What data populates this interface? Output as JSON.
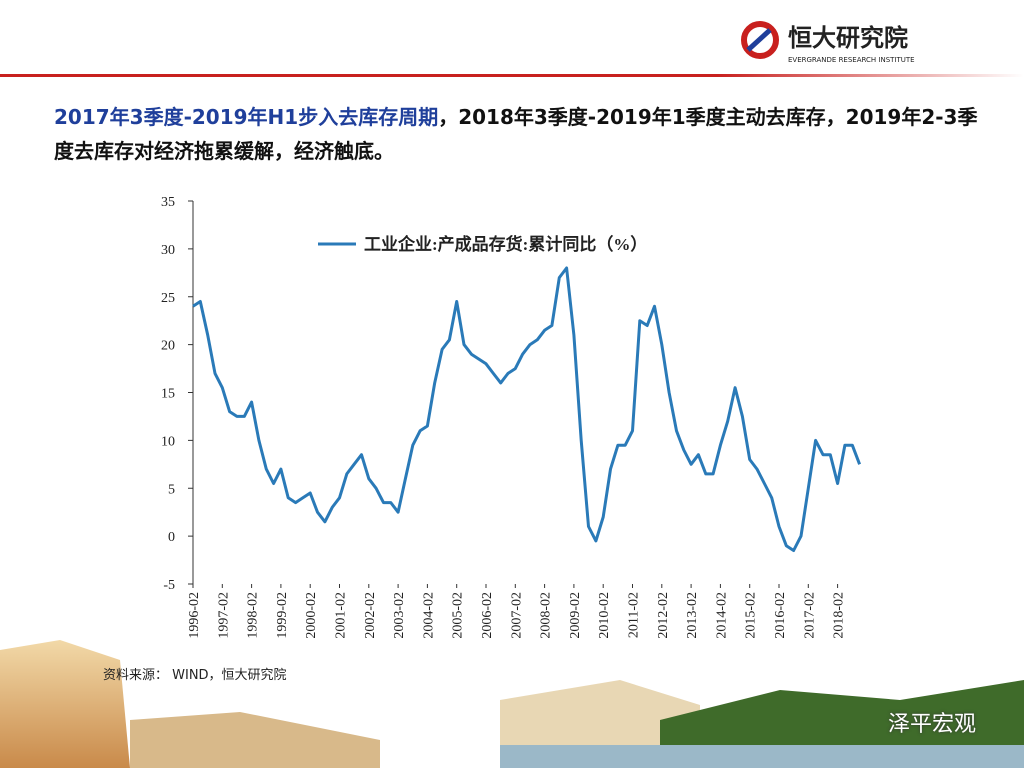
{
  "header": {
    "logo_cn": "恒大研究院",
    "logo_en": "EVERGRANDE RESEARCH INSTITUTE"
  },
  "slide": {
    "title_highlight": "2017年3季度-2019年H1步入去库存周期",
    "title_rest": "，2018年3季度-2019年1季度主动去库存，2019年2-3季度去库存对经济拖累缓解，经济触底。",
    "source": "资料来源： WIND，恒大研究院",
    "watermark": "泽平宏观"
  },
  "chart_data": {
    "type": "line",
    "categories": [
      "1996-02",
      "1996-05",
      "1996-08",
      "1996-11",
      "1997-02",
      "1997-05",
      "1997-08",
      "1997-11",
      "1998-02",
      "1998-05",
      "1998-08",
      "1998-11",
      "1999-02",
      "1999-05",
      "1999-08",
      "1999-11",
      "2000-02",
      "2000-05",
      "2000-08",
      "2000-11",
      "2001-02",
      "2001-05",
      "2001-08",
      "2001-11",
      "2002-02",
      "2002-05",
      "2002-08",
      "2002-11",
      "2003-02",
      "2003-05",
      "2003-08",
      "2003-11",
      "2004-02",
      "2004-05",
      "2004-08",
      "2004-11",
      "2005-02",
      "2005-05",
      "2005-08",
      "2005-11",
      "2006-02",
      "2006-05",
      "2006-08",
      "2006-11",
      "2007-02",
      "2007-05",
      "2007-08",
      "2007-11",
      "2008-02",
      "2008-05",
      "2008-08",
      "2008-11",
      "2009-02",
      "2009-05",
      "2009-08",
      "2009-11",
      "2010-02",
      "2010-05",
      "2010-08",
      "2010-11",
      "2011-02",
      "2011-05",
      "2011-08",
      "2011-11",
      "2012-02",
      "2012-05",
      "2012-08",
      "2012-11",
      "2013-02",
      "2013-05",
      "2013-08",
      "2013-11",
      "2014-02",
      "2014-05",
      "2014-08",
      "2014-11",
      "2015-02",
      "2015-05",
      "2015-08",
      "2015-11",
      "2016-02",
      "2016-05",
      "2016-08",
      "2016-11",
      "2017-02",
      "2017-05",
      "2017-08",
      "2017-11",
      "2018-02",
      "2018-05",
      "2018-08",
      "2018-11"
    ],
    "series": [
      {
        "name": "工业企业:产成品存货:累计同比（%）",
        "color": "#2a7ab8",
        "values": [
          24,
          24.5,
          21,
          17,
          15.5,
          13,
          12.5,
          12.5,
          14,
          10,
          7,
          5.5,
          7,
          4,
          3.5,
          4,
          4.5,
          2.5,
          1.5,
          3,
          4,
          6.5,
          7.5,
          8.5,
          6,
          5,
          3.5,
          3.5,
          2.5,
          6,
          9.5,
          11,
          11.5,
          16,
          19.5,
          20.5,
          24.5,
          20,
          19,
          18.5,
          18,
          17,
          16,
          17,
          17.5,
          19,
          20,
          20.5,
          21.5,
          22,
          27,
          28,
          21,
          10,
          1,
          -0.5,
          2,
          7,
          9.5,
          9.5,
          11,
          22.5,
          22,
          24,
          20,
          15,
          11,
          9,
          7.5,
          8.5,
          6.5,
          6.5,
          9.5,
          12,
          15.5,
          12.5,
          8,
          7,
          5.5,
          4,
          1,
          -1,
          -1.5,
          0,
          5,
          10,
          8.5,
          8.5,
          5.5,
          9.5,
          9.5,
          7.5
        ]
      }
    ],
    "ylim": [
      -5,
      35
    ],
    "yticks": [
      -5,
      0,
      5,
      10,
      15,
      20,
      25,
      30,
      35
    ],
    "xticks": [
      "1996-02",
      "1997-02",
      "1998-02",
      "1999-02",
      "2000-02",
      "2001-02",
      "2002-02",
      "2003-02",
      "2004-02",
      "2005-02",
      "2006-02",
      "2007-02",
      "2008-02",
      "2009-02",
      "2010-02",
      "2011-02",
      "2012-02",
      "2013-02",
      "2014-02",
      "2015-02",
      "2016-02",
      "2017-02",
      "2018-02"
    ],
    "legend": "top-left"
  }
}
